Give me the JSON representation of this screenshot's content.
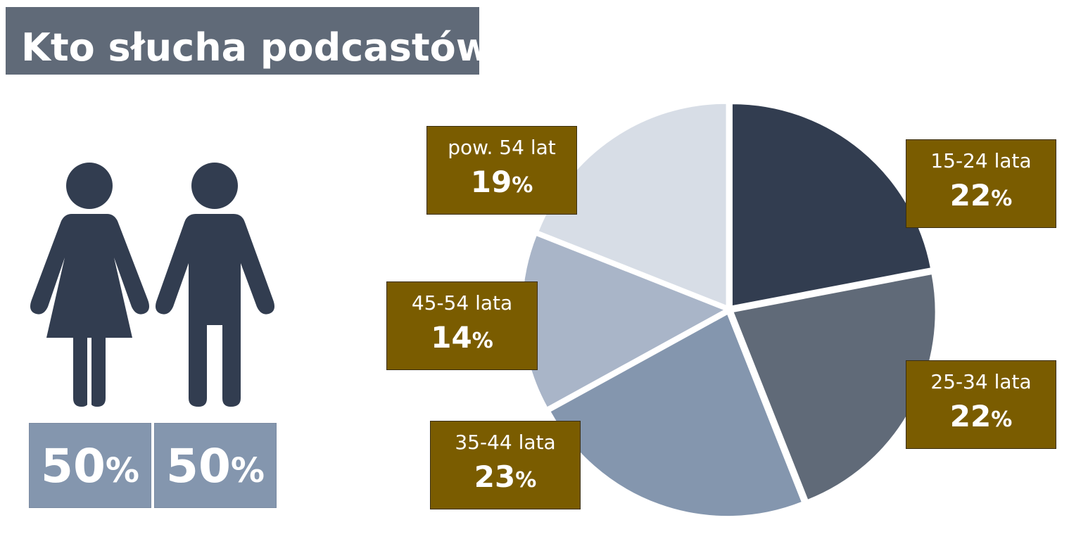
{
  "title": "Kto słucha podcastów?",
  "gender": {
    "items": [
      {
        "name": "female",
        "value": "50",
        "unit": "%"
      },
      {
        "name": "male",
        "value": "50",
        "unit": "%"
      }
    ]
  },
  "colors": {
    "title_bg": "#606a78",
    "figure": "#323d50",
    "pct_box": "#8496ae",
    "label_box": "#7a5c00"
  },
  "chart_data": {
    "type": "pie",
    "title": "Kto słucha podcastów?",
    "categories": [
      "15-24 lata",
      "25-34 lata",
      "35-44 lata",
      "45-54 lata",
      "pow. 54 lat"
    ],
    "values": [
      22,
      22,
      23,
      14,
      19
    ],
    "unit": "%",
    "colors": [
      "#323d50",
      "#606a78",
      "#8496ae",
      "#a9b5c8",
      "#d7dde6"
    ],
    "exploded": true
  }
}
